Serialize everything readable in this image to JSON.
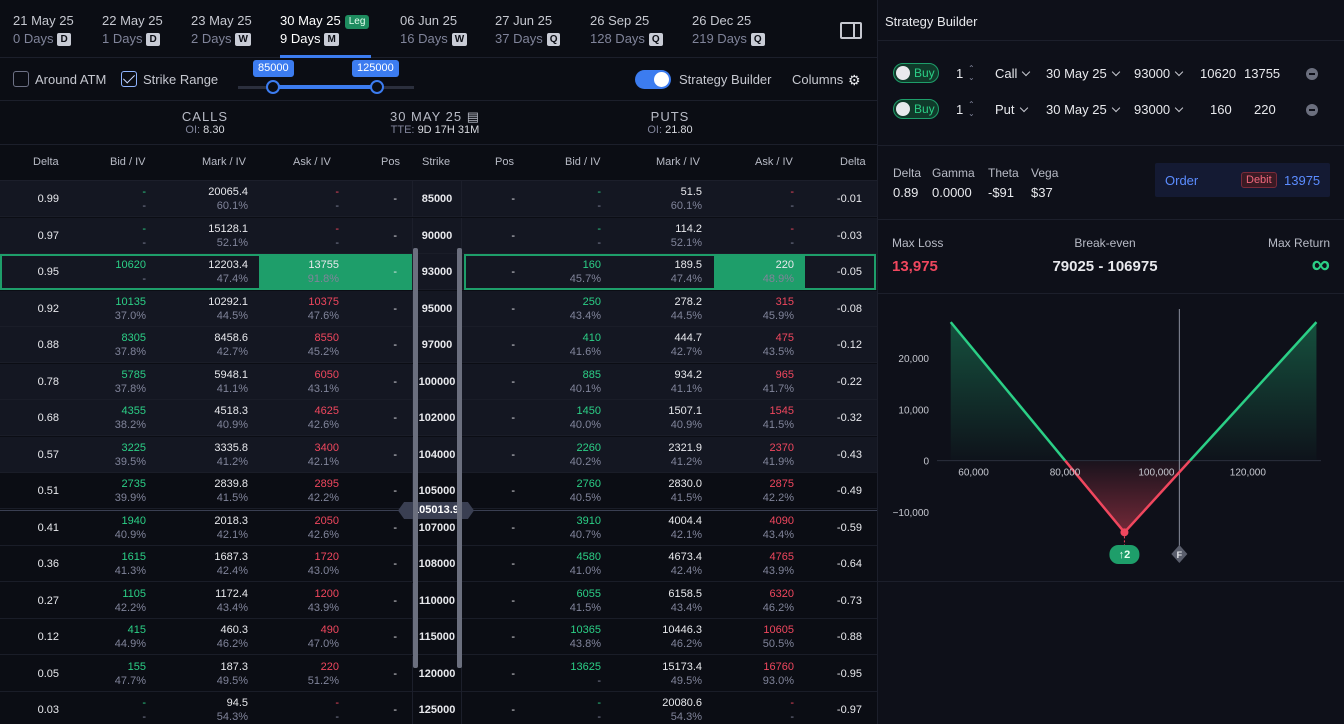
{
  "expiries": [
    {
      "date": "21 May 25",
      "days": "0 Days",
      "badge": "D"
    },
    {
      "date": "22 May 25",
      "days": "1 Days",
      "badge": "D"
    },
    {
      "date": "23 May 25",
      "days": "2 Days",
      "badge": "W"
    },
    {
      "date": "30 May 25",
      "days": "9 Days",
      "badge": "M",
      "leg": "Leg"
    },
    {
      "date": "06 Jun 25",
      "days": "16 Days",
      "badge": "W"
    },
    {
      "date": "27 Jun 25",
      "days": "37 Days",
      "badge": "Q"
    },
    {
      "date": "26 Sep 25",
      "days": "128 Days",
      "badge": "Q"
    },
    {
      "date": "26 Dec 25",
      "days": "219 Days",
      "badge": "Q"
    }
  ],
  "options": {
    "around_atm": "Around ATM",
    "strike_range": "Strike Range",
    "range_min": "85000",
    "range_max": "125000",
    "strategy_builder": "Strategy Builder",
    "columns": "Columns"
  },
  "header": {
    "calls": "CALLS",
    "calls_oi_label": "OI:",
    "calls_oi": "8.30",
    "expiry": "30 MAY 25",
    "tte_label": "TTE:",
    "tte": "9D 17H 31M",
    "puts": "PUTS",
    "puts_oi_label": "OI:",
    "puts_oi": "21.80"
  },
  "columns": [
    "Delta",
    "Bid / IV",
    "Mark / IV",
    "Ask / IV",
    "Pos",
    "Strike",
    "Pos",
    "Bid / IV",
    "Mark / IV",
    "Ask / IV",
    "Delta"
  ],
  "rows": [
    {
      "strike": "85000",
      "c_delta": "0.99",
      "c_bid": "-",
      "c_bid_iv": "-",
      "c_mark": "20065.4",
      "c_mark_iv": "60.1%",
      "c_ask": "-",
      "c_ask_iv": "-",
      "c_pos": "-",
      "p_pos": "-",
      "p_bid": "-",
      "p_bid_iv": "-",
      "p_mark": "51.5",
      "p_mark_iv": "60.1%",
      "p_ask": "-",
      "p_ask_iv": "-",
      "p_delta": "-0.01"
    },
    {
      "strike": "90000",
      "c_delta": "0.97",
      "c_bid": "-",
      "c_bid_iv": "-",
      "c_mark": "15128.1",
      "c_mark_iv": "52.1%",
      "c_ask": "-",
      "c_ask_iv": "-",
      "c_pos": "-",
      "p_pos": "-",
      "p_bid": "-",
      "p_bid_iv": "-",
      "p_mark": "114.2",
      "p_mark_iv": "52.1%",
      "p_ask": "-",
      "p_ask_iv": "-",
      "p_delta": "-0.03"
    },
    {
      "strike": "93000",
      "c_delta": "0.95",
      "c_bid": "10620",
      "c_bid_iv": "-",
      "c_mark": "12203.4",
      "c_mark_iv": "47.4%",
      "c_ask": "13755",
      "c_ask_iv": "91.8%",
      "c_pos": "-",
      "p_pos": "-",
      "p_bid": "160",
      "p_bid_iv": "45.7%",
      "p_mark": "189.5",
      "p_mark_iv": "47.4%",
      "p_ask": "220",
      "p_ask_iv": "48.9%",
      "p_delta": "-0.05",
      "selected": true
    },
    {
      "strike": "95000",
      "c_delta": "0.92",
      "c_bid": "10135",
      "c_bid_iv": "37.0%",
      "c_mark": "10292.1",
      "c_mark_iv": "44.5%",
      "c_ask": "10375",
      "c_ask_iv": "47.6%",
      "c_pos": "-",
      "p_pos": "-",
      "p_bid": "250",
      "p_bid_iv": "43.4%",
      "p_mark": "278.2",
      "p_mark_iv": "44.5%",
      "p_ask": "315",
      "p_ask_iv": "45.9%",
      "p_delta": "-0.08"
    },
    {
      "strike": "97000",
      "c_delta": "0.88",
      "c_bid": "8305",
      "c_bid_iv": "37.8%",
      "c_mark": "8458.6",
      "c_mark_iv": "42.7%",
      "c_ask": "8550",
      "c_ask_iv": "45.2%",
      "c_pos": "-",
      "p_pos": "-",
      "p_bid": "410",
      "p_bid_iv": "41.6%",
      "p_mark": "444.7",
      "p_mark_iv": "42.7%",
      "p_ask": "475",
      "p_ask_iv": "43.5%",
      "p_delta": "-0.12"
    },
    {
      "strike": "100000",
      "c_delta": "0.78",
      "c_bid": "5785",
      "c_bid_iv": "37.8%",
      "c_mark": "5948.1",
      "c_mark_iv": "41.1%",
      "c_ask": "6050",
      "c_ask_iv": "43.1%",
      "c_pos": "-",
      "p_pos": "-",
      "p_bid": "885",
      "p_bid_iv": "40.1%",
      "p_mark": "934.2",
      "p_mark_iv": "41.1%",
      "p_ask": "965",
      "p_ask_iv": "41.7%",
      "p_delta": "-0.22"
    },
    {
      "strike": "102000",
      "c_delta": "0.68",
      "c_bid": "4355",
      "c_bid_iv": "38.2%",
      "c_mark": "4518.3",
      "c_mark_iv": "40.9%",
      "c_ask": "4625",
      "c_ask_iv": "42.6%",
      "c_pos": "-",
      "p_pos": "-",
      "p_bid": "1450",
      "p_bid_iv": "40.0%",
      "p_mark": "1507.1",
      "p_mark_iv": "40.9%",
      "p_ask": "1545",
      "p_ask_iv": "41.5%",
      "p_delta": "-0.32"
    },
    {
      "strike": "104000",
      "c_delta": "0.57",
      "c_bid": "3225",
      "c_bid_iv": "39.5%",
      "c_mark": "3335.8",
      "c_mark_iv": "41.2%",
      "c_ask": "3400",
      "c_ask_iv": "42.1%",
      "c_pos": "-",
      "p_pos": "-",
      "p_bid": "2260",
      "p_bid_iv": "40.2%",
      "p_mark": "2321.9",
      "p_mark_iv": "41.2%",
      "p_ask": "2370",
      "p_ask_iv": "41.9%",
      "p_delta": "-0.43"
    },
    {
      "strike": "105000",
      "c_delta": "0.51",
      "c_bid": "2735",
      "c_bid_iv": "39.9%",
      "c_mark": "2839.8",
      "c_mark_iv": "41.5%",
      "c_ask": "2895",
      "c_ask_iv": "42.2%",
      "c_pos": "-",
      "p_pos": "-",
      "p_bid": "2760",
      "p_bid_iv": "40.5%",
      "p_mark": "2830.0",
      "p_mark_iv": "41.5%",
      "p_ask": "2875",
      "p_ask_iv": "42.2%",
      "p_delta": "-0.49"
    },
    {
      "strike": "107000",
      "c_delta": "0.41",
      "c_bid": "1940",
      "c_bid_iv": "40.9%",
      "c_mark": "2018.3",
      "c_mark_iv": "42.1%",
      "c_ask": "2050",
      "c_ask_iv": "42.6%",
      "c_pos": "-",
      "p_pos": "-",
      "p_bid": "3910",
      "p_bid_iv": "40.7%",
      "p_mark": "4004.4",
      "p_mark_iv": "42.1%",
      "p_ask": "4090",
      "p_ask_iv": "43.4%",
      "p_delta": "-0.59"
    },
    {
      "strike": "108000",
      "c_delta": "0.36",
      "c_bid": "1615",
      "c_bid_iv": "41.3%",
      "c_mark": "1687.3",
      "c_mark_iv": "42.4%",
      "c_ask": "1720",
      "c_ask_iv": "43.0%",
      "c_pos": "-",
      "p_pos": "-",
      "p_bid": "4580",
      "p_bid_iv": "41.0%",
      "p_mark": "4673.4",
      "p_mark_iv": "42.4%",
      "p_ask": "4765",
      "p_ask_iv": "43.9%",
      "p_delta": "-0.64"
    },
    {
      "strike": "110000",
      "c_delta": "0.27",
      "c_bid": "1105",
      "c_bid_iv": "42.2%",
      "c_mark": "1172.4",
      "c_mark_iv": "43.4%",
      "c_ask": "1200",
      "c_ask_iv": "43.9%",
      "c_pos": "-",
      "p_pos": "-",
      "p_bid": "6055",
      "p_bid_iv": "41.5%",
      "p_mark": "6158.5",
      "p_mark_iv": "43.4%",
      "p_ask": "6320",
      "p_ask_iv": "46.2%",
      "p_delta": "-0.73"
    },
    {
      "strike": "115000",
      "c_delta": "0.12",
      "c_bid": "415",
      "c_bid_iv": "44.9%",
      "c_mark": "460.3",
      "c_mark_iv": "46.2%",
      "c_ask": "490",
      "c_ask_iv": "47.0%",
      "c_pos": "-",
      "p_pos": "-",
      "p_bid": "10365",
      "p_bid_iv": "43.8%",
      "p_mark": "10446.3",
      "p_mark_iv": "46.2%",
      "p_ask": "10605",
      "p_ask_iv": "50.5%",
      "p_delta": "-0.88"
    },
    {
      "strike": "120000",
      "c_delta": "0.05",
      "c_bid": "155",
      "c_bid_iv": "47.7%",
      "c_mark": "187.3",
      "c_mark_iv": "49.5%",
      "c_ask": "220",
      "c_ask_iv": "51.2%",
      "c_pos": "-",
      "p_pos": "-",
      "p_bid": "13625",
      "p_bid_iv": "-",
      "p_mark": "15173.4",
      "p_mark_iv": "49.5%",
      "p_ask": "16760",
      "p_ask_iv": "93.0%",
      "p_delta": "-0.95"
    },
    {
      "strike": "125000",
      "c_delta": "0.03",
      "c_bid": "-",
      "c_bid_iv": "-",
      "c_mark": "94.5",
      "c_mark_iv": "54.3%",
      "c_ask": "-",
      "c_ask_iv": "-",
      "c_pos": "-",
      "p_pos": "-",
      "p_bid": "-",
      "p_bid_iv": "-",
      "p_mark": "20080.6",
      "p_mark_iv": "54.3%",
      "p_ask": "-",
      "p_ask_iv": "-",
      "p_delta": "-0.97"
    }
  ],
  "atm_price": "105013.9",
  "strategy": {
    "title": "Strategy Builder",
    "legs": [
      {
        "side": "Buy",
        "qty": "1",
        "type": "Call",
        "expiry": "30 May 25",
        "strike": "93000",
        "bid": "10620",
        "ask": "13755"
      },
      {
        "side": "Buy",
        "qty": "1",
        "type": "Put",
        "expiry": "30 May 25",
        "strike": "93000",
        "bid": "160",
        "ask": "220"
      }
    ],
    "greeks": [
      {
        "label": "Delta",
        "value": "0.89"
      },
      {
        "label": "Gamma",
        "value": "0.0000"
      },
      {
        "label": "Theta",
        "value": "-$91"
      },
      {
        "label": "Vega",
        "value": "$37"
      }
    ],
    "order_label": "Order",
    "order_type": "Debit",
    "order_value": "13975",
    "max_loss_label": "Max Loss",
    "max_loss": "13,975",
    "breakeven_label": "Break-even",
    "breakeven": "79025 - 106975",
    "max_return_label": "Max Return",
    "max_return": "∞",
    "marker_leg": "↑2",
    "marker_f": "F"
  },
  "colors": {
    "green": "#2bcf86",
    "red": "#f0475e",
    "accent": "#3c7cf0",
    "highlight": "#1e9e6a"
  },
  "chart_data": {
    "type": "line",
    "x": [
      55000,
      93000,
      135000
    ],
    "series": [
      {
        "values": [
          27000,
          -13975,
          27000
        ]
      }
    ],
    "xlim": [
      52000,
      136000
    ],
    "ylim": [
      -18000,
      28000
    ],
    "xticks": [
      60000,
      80000,
      100000,
      120000
    ],
    "xtick_labels": [
      "60,000",
      "80,000",
      "100,000",
      "120,000"
    ],
    "yticks": [
      20000,
      10000,
      0,
      -10000
    ],
    "ytick_labels": [
      "20,000",
      "10,000",
      "0",
      "−10,000"
    ],
    "forward": 105013.9,
    "grid": false
  }
}
